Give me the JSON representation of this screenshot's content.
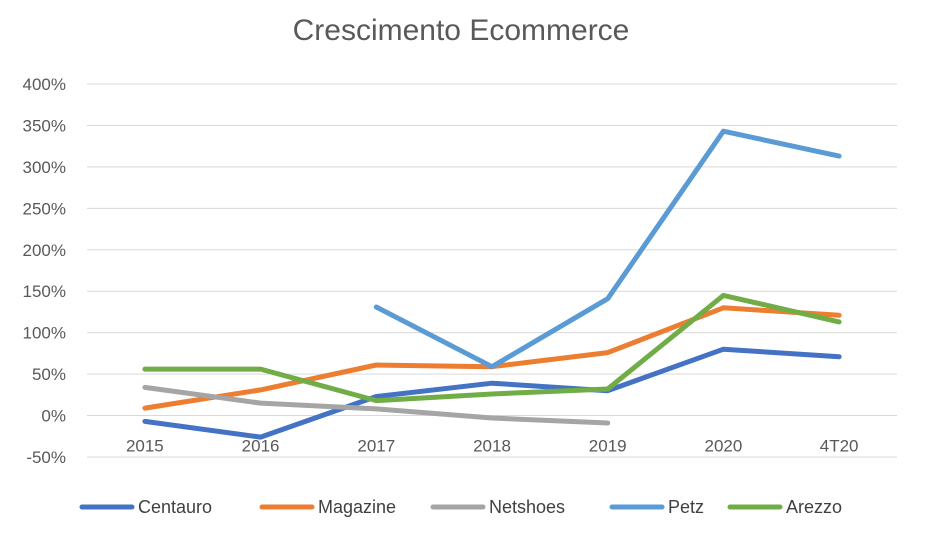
{
  "chart_data": {
    "type": "line",
    "title": "Crescimento Ecommerce",
    "categories": [
      "2015",
      "2016",
      "2017",
      "2018",
      "2019",
      "2020",
      "4T20"
    ],
    "y_ticks": [
      "-50%",
      "0%",
      "50%",
      "100%",
      "150%",
      "200%",
      "250%",
      "300%",
      "350%",
      "400%"
    ],
    "ylim": [
      -50,
      400
    ],
    "y_unit": "%",
    "grid": true,
    "legend_position": "bottom",
    "series": [
      {
        "name": "Centauro",
        "color": "#4472C4",
        "values": [
          -7,
          -26,
          23,
          39,
          30,
          80,
          71
        ]
      },
      {
        "name": "Magazine",
        "color": "#ED7D31",
        "values": [
          9,
          31,
          61,
          59,
          76,
          130,
          121
        ]
      },
      {
        "name": "Netshoes",
        "color": "#A5A5A5",
        "values": [
          34,
          15,
          8,
          -3,
          -9,
          null,
          null
        ]
      },
      {
        "name": "Petz",
        "color": "#5B9BD5",
        "values": [
          null,
          null,
          131,
          59,
          141,
          343,
          313
        ]
      },
      {
        "name": "Arezzo",
        "color": "#70AD47",
        "values": [
          56,
          56,
          18,
          26,
          32,
          145,
          113
        ]
      }
    ]
  }
}
